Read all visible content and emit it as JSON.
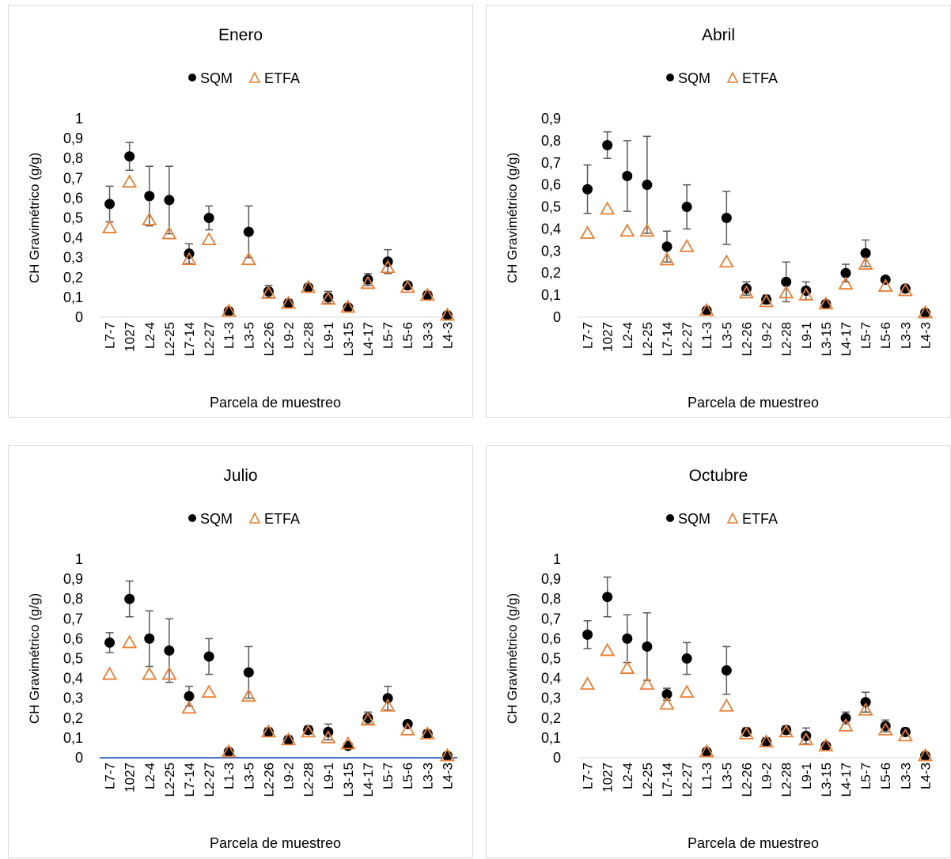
{
  "colors": {
    "sqm": "#000000",
    "etfa": "#ED7D31",
    "errorbar": "#595959",
    "axisline": "#D9D9D9",
    "highlight_axis": "#4472C4",
    "panel_border": "#D9D9D9"
  },
  "chart_data": [
    {
      "type": "scatter",
      "title": "Enero",
      "xlabel": "Parcela de muestreo",
      "ylabel": "CH Gravimétrico (g/g)",
      "ylim": [
        0,
        1
      ],
      "yticks": [
        "0",
        "0,1",
        "0,2",
        "0,3",
        "0,4",
        "0,5",
        "0,6",
        "0,7",
        "0,8",
        "0,9",
        "1"
      ],
      "legend_position": "top",
      "grid": false,
      "categories": [
        "L7-7",
        "1027",
        "L2-4",
        "L2-25",
        "L7-14",
        "L2-27",
        "L1-3",
        "L3-5",
        "L2-26",
        "L9-2",
        "L2-28",
        "L9-1",
        "L3-15",
        "L4-17",
        "L5-7",
        "L5-6",
        "L3-3",
        "L4-3"
      ],
      "series": [
        {
          "name": "SQM",
          "marker": "circle",
          "values": [
            0.57,
            0.81,
            0.61,
            0.59,
            0.32,
            0.5,
            0.03,
            0.43,
            0.13,
            0.07,
            0.15,
            0.1,
            0.05,
            0.19,
            0.28,
            0.16,
            0.11,
            0.01
          ],
          "error": [
            0.09,
            0.07,
            0.15,
            0.17,
            0.05,
            0.06,
            0.01,
            0.13,
            0.03,
            0.02,
            0.01,
            0.03,
            0.01,
            0.03,
            0.06,
            0.01,
            0.02,
            0.01
          ]
        },
        {
          "name": "ETFA",
          "marker": "triangle-open",
          "values": [
            0.45,
            0.68,
            0.49,
            0.42,
            0.29,
            0.39,
            0.03,
            0.29,
            0.12,
            0.07,
            0.15,
            0.09,
            0.05,
            0.17,
            0.25,
            0.15,
            0.11,
            0.01
          ]
        }
      ]
    },
    {
      "type": "scatter",
      "title": "Abril",
      "xlabel": "Parcela de muestreo",
      "ylabel": "CH Gravimétrico (g/g)",
      "ylim": [
        0,
        0.9
      ],
      "yticks": [
        "0",
        "0,1",
        "0,2",
        "0,3",
        "0,4",
        "0,5",
        "0,6",
        "0,7",
        "0,8",
        "0,9"
      ],
      "legend_position": "top",
      "grid": false,
      "categories": [
        "L7-7",
        "1027",
        "L2-4",
        "L2-25",
        "L7-14",
        "L2-27",
        "L1-3",
        "L3-5",
        "L2-26",
        "L9-2",
        "L2-28",
        "L9-1",
        "L3-15",
        "L4-17",
        "L5-7",
        "L5-6",
        "L3-3",
        "L4-3"
      ],
      "series": [
        {
          "name": "SQM",
          "marker": "circle",
          "values": [
            0.58,
            0.78,
            0.64,
            0.6,
            0.32,
            0.5,
            0.03,
            0.45,
            0.13,
            0.08,
            0.16,
            0.12,
            0.06,
            0.2,
            0.29,
            0.17,
            0.13,
            0.02
          ],
          "error": [
            0.11,
            0.06,
            0.16,
            0.22,
            0.07,
            0.1,
            0.01,
            0.12,
            0.03,
            0.02,
            0.09,
            0.04,
            0.01,
            0.04,
            0.06,
            0.01,
            0.01,
            0.01
          ]
        },
        {
          "name": "ETFA",
          "marker": "triangle-open",
          "values": [
            0.38,
            0.49,
            0.39,
            0.39,
            0.26,
            0.32,
            0.03,
            0.25,
            0.11,
            0.07,
            0.11,
            0.1,
            0.06,
            0.15,
            0.24,
            0.14,
            0.12,
            0.02
          ]
        }
      ]
    },
    {
      "type": "scatter",
      "title": "Julio",
      "xlabel": "Parcela de muestreo",
      "ylabel": "CH Gravimétrico (g/g)",
      "ylim": [
        0,
        1
      ],
      "yticks": [
        "0",
        "0,1",
        "0,2",
        "0,3",
        "0,4",
        "0,5",
        "0,6",
        "0,7",
        "0,8",
        "0,9",
        "1"
      ],
      "legend_position": "top",
      "grid": false,
      "categories": [
        "L7-7",
        "1027",
        "L2-4",
        "L2-25",
        "L7-14",
        "L2-27",
        "L1-3",
        "L3-5",
        "L2-26",
        "L9-2",
        "L2-28",
        "L9-1",
        "L3-15",
        "L4-17",
        "L5-7",
        "L5-6",
        "L3-3",
        "L4-3"
      ],
      "series": [
        {
          "name": "SQM",
          "marker": "circle",
          "values": [
            0.58,
            0.8,
            0.6,
            0.54,
            0.31,
            0.51,
            0.03,
            0.43,
            0.13,
            0.09,
            0.14,
            0.13,
            0.06,
            0.2,
            0.3,
            0.17,
            0.12,
            0.01
          ],
          "error": [
            0.05,
            0.09,
            0.14,
            0.16,
            0.05,
            0.09,
            0.01,
            0.13,
            0.02,
            0.02,
            0.02,
            0.04,
            0.01,
            0.03,
            0.06,
            0.01,
            0.02,
            0.01
          ]
        },
        {
          "name": "ETFA",
          "marker": "triangle-open",
          "values": [
            0.42,
            0.58,
            0.42,
            0.42,
            0.25,
            0.33,
            0.03,
            0.31,
            0.13,
            0.09,
            0.13,
            0.1,
            0.07,
            0.19,
            0.26,
            0.14,
            0.12,
            0.01
          ]
        }
      ]
    },
    {
      "type": "scatter",
      "title": "Octubre",
      "xlabel": "Parcela de muestreo",
      "ylabel": "CH Gravimétrico (g/g)",
      "ylim": [
        0,
        1
      ],
      "yticks": [
        "0",
        "0,1",
        "0,2",
        "0,3",
        "0,4",
        "0,5",
        "0,6",
        "0,7",
        "0,8",
        "0,9",
        "1"
      ],
      "legend_position": "top",
      "grid": false,
      "categories": [
        "L7-7",
        "1027",
        "L2-4",
        "L2-25",
        "L7-14",
        "L2-27",
        "L1-3",
        "L3-5",
        "L2-26",
        "L9-2",
        "L2-28",
        "L9-1",
        "L3-15",
        "L4-17",
        "L5-7",
        "L5-6",
        "L3-3",
        "L4-3"
      ],
      "series": [
        {
          "name": "SQM",
          "marker": "circle",
          "values": [
            0.62,
            0.81,
            0.6,
            0.56,
            0.32,
            0.5,
            0.03,
            0.44,
            0.13,
            0.08,
            0.14,
            0.11,
            0.06,
            0.2,
            0.28,
            0.16,
            0.13,
            0.01
          ],
          "error": [
            0.07,
            0.1,
            0.12,
            0.17,
            0.03,
            0.08,
            0.01,
            0.12,
            0.02,
            0.02,
            0.02,
            0.04,
            0.01,
            0.03,
            0.05,
            0.03,
            0.02,
            0.01
          ]
        },
        {
          "name": "ETFA",
          "marker": "triangle-open",
          "values": [
            0.37,
            0.54,
            0.45,
            0.37,
            0.27,
            0.33,
            0.03,
            0.26,
            0.12,
            0.08,
            0.13,
            0.09,
            0.06,
            0.16,
            0.24,
            0.14,
            0.11,
            0.01
          ]
        }
      ]
    }
  ]
}
